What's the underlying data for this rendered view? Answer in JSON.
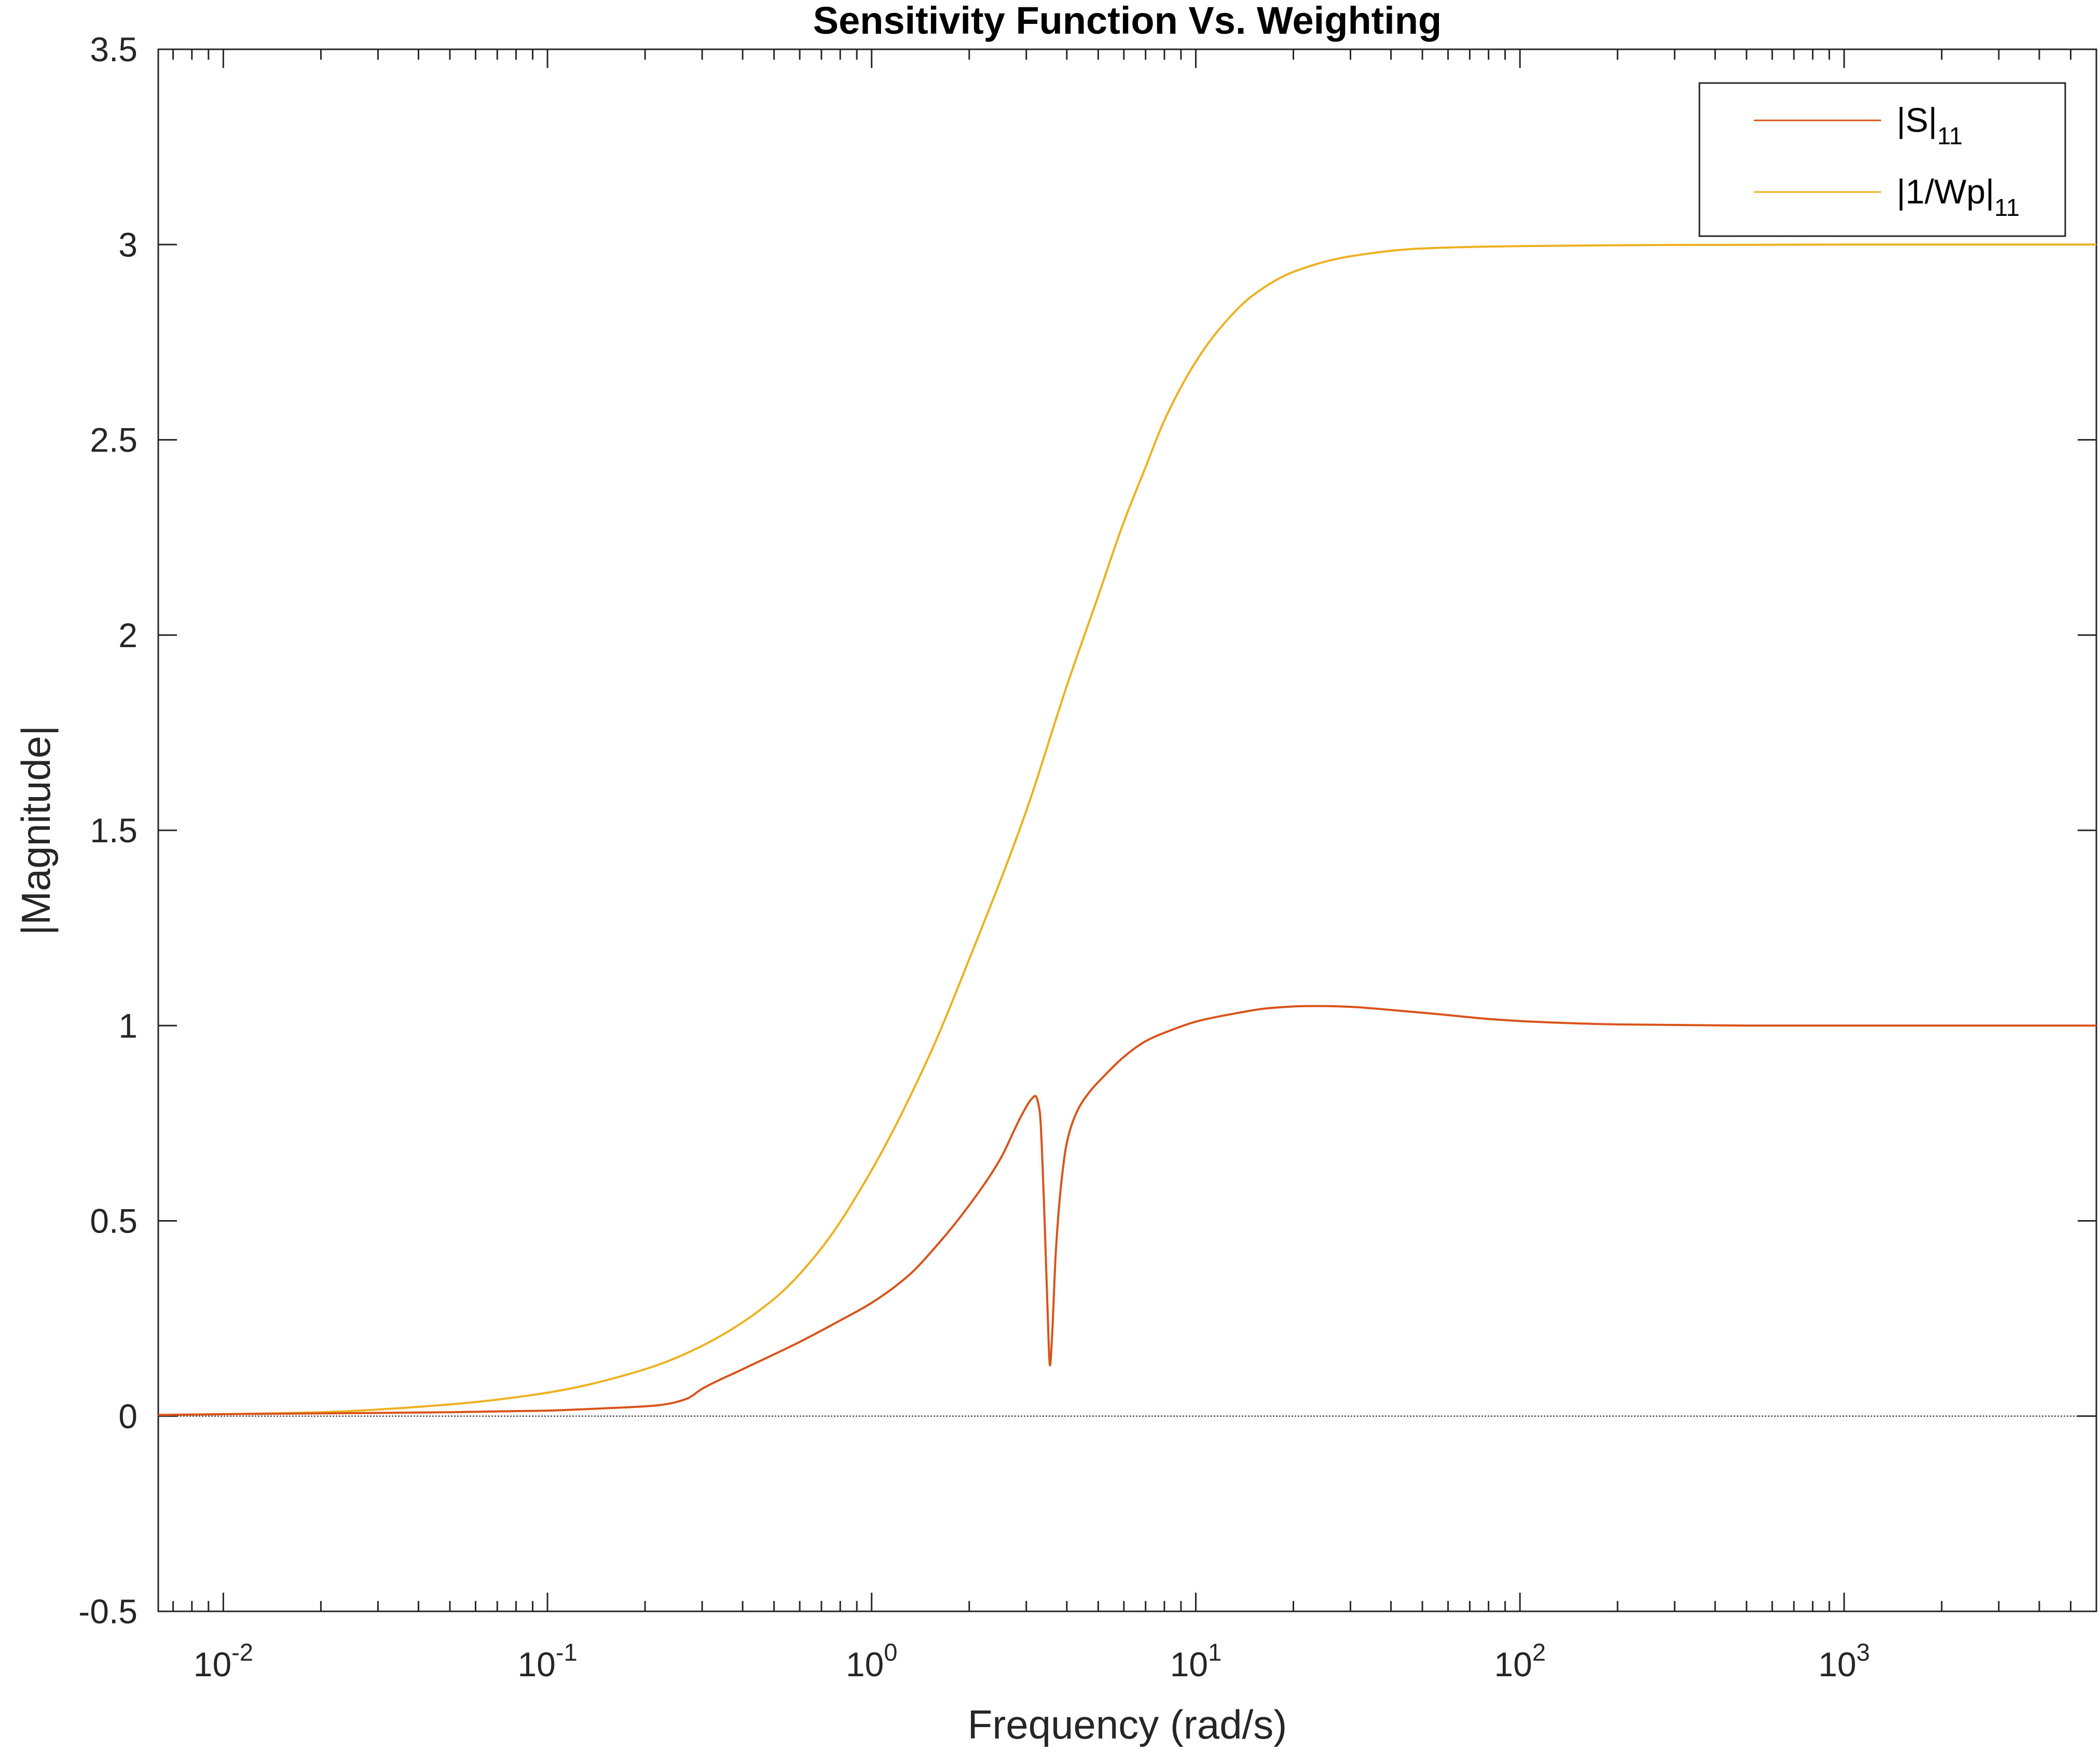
{
  "chart_data": {
    "type": "line",
    "title": "Sensitivity Function Vs. Weighting",
    "xlabel": "Frequency (rad/s)",
    "ylabel": "|Magnitude|",
    "xscale": "log",
    "xlim": [
      0.0063,
      6000
    ],
    "ylim": [
      -0.5,
      3.5
    ],
    "y_ticks": [
      "-0.5",
      "0",
      "0.5",
      "1",
      "1.5",
      "2",
      "2.5",
      "3",
      "3.5"
    ],
    "x_ticks": [
      {
        "base": "10",
        "exp": "-2",
        "value": 0.01
      },
      {
        "base": "10",
        "exp": "-1",
        "value": 0.1
      },
      {
        "base": "10",
        "exp": "0",
        "value": 1
      },
      {
        "base": "10",
        "exp": "1",
        "value": 10
      },
      {
        "base": "10",
        "exp": "2",
        "value": 100
      },
      {
        "base": "10",
        "exp": "3",
        "value": 1000
      }
    ],
    "grid": false,
    "legend_position": "top-right",
    "zero_line": true,
    "series": [
      {
        "label": "|S|",
        "label_sub": "11",
        "color": "#D95319",
        "x": [
          0.0063,
          0.01,
          0.02,
          0.05,
          0.1,
          0.15,
          0.2,
          0.23,
          0.27,
          0.3,
          0.4,
          0.6,
          0.8,
          1.0,
          1.3,
          1.6,
          2.0,
          2.5,
          2.9,
          3.1,
          3.2,
          3.3,
          3.4,
          3.48,
          3.55,
          3.6,
          3.7,
          3.85,
          4.0,
          4.3,
          4.7,
          5.2,
          6.0,
          7.0,
          8.5,
          10,
          13,
          17,
          22,
          25,
          30,
          40,
          55,
          80,
          110,
          200,
          500,
          1000,
          2000,
          6000
        ],
        "y": [
          0.003,
          0.005,
          0.007,
          0.01,
          0.014,
          0.02,
          0.025,
          0.03,
          0.045,
          0.07,
          0.12,
          0.19,
          0.245,
          0.29,
          0.36,
          0.44,
          0.54,
          0.66,
          0.77,
          0.81,
          0.82,
          0.78,
          0.55,
          0.3,
          0.13,
          0.2,
          0.42,
          0.6,
          0.7,
          0.78,
          0.83,
          0.87,
          0.92,
          0.96,
          0.99,
          1.01,
          1.03,
          1.045,
          1.05,
          1.05,
          1.048,
          1.04,
          1.03,
          1.017,
          1.01,
          1.003,
          1.0,
          1.0,
          1.0,
          1.0
        ]
      },
      {
        "label": "|1/Wp|",
        "label_sub": "11",
        "color": "#EDB120",
        "x": [
          0.0063,
          0.01,
          0.02,
          0.05,
          0.1,
          0.2,
          0.3,
          0.5,
          0.7,
          1.0,
          1.5,
          2.0,
          3.0,
          4.0,
          5.0,
          6.0,
          7.0,
          8.0,
          10,
          12,
          15,
          20,
          30,
          50,
          100,
          300,
          1000,
          6000
        ],
        "y": [
          0.003,
          0.005,
          0.01,
          0.03,
          0.06,
          0.12,
          0.18,
          0.3,
          0.43,
          0.63,
          0.92,
          1.17,
          1.55,
          1.87,
          2.1,
          2.29,
          2.43,
          2.55,
          2.7,
          2.79,
          2.87,
          2.93,
          2.97,
          2.99,
          2.996,
          2.999,
          3.0,
          3.0
        ]
      }
    ]
  }
}
